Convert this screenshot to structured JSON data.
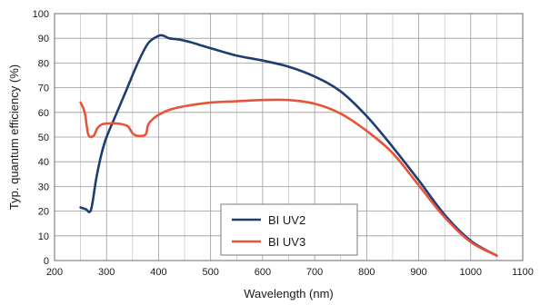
{
  "chart_data": {
    "type": "line",
    "xlabel": "Wavelength (nm)",
    "ylabel": "Typ. quantum efficiency (%)",
    "xlim": [
      200,
      1100
    ],
    "ylim": [
      0,
      100
    ],
    "x_ticks": [
      200,
      300,
      400,
      500,
      600,
      700,
      800,
      900,
      1000,
      1100
    ],
    "y_ticks": [
      0,
      10,
      20,
      30,
      40,
      50,
      60,
      70,
      80,
      90,
      100
    ],
    "x_tick_labels": [
      "200",
      "300",
      "400",
      "500",
      "600",
      "700",
      "800",
      "900",
      "1000",
      "1100"
    ],
    "y_tick_labels": [
      "0",
      "10",
      "20",
      "30",
      "40",
      "50",
      "60",
      "70",
      "80",
      "90",
      "100"
    ],
    "grid": true,
    "legend_position": "bottom-left",
    "series": [
      {
        "name": "BI UV2",
        "color": "#1f3d73",
        "x": [
          250,
          260,
          270,
          280,
          290,
          300,
          320,
          340,
          360,
          380,
          400,
          410,
          420,
          440,
          460,
          500,
          550,
          600,
          650,
          700,
          750,
          800,
          850,
          900,
          950,
          1000,
          1050
        ],
        "y": [
          21.5,
          20.8,
          20.5,
          33,
          43,
          50,
          60,
          70,
          80,
          88,
          91,
          91,
          90,
          89.5,
          88.5,
          86,
          83,
          81,
          78.5,
          74.5,
          68.5,
          58.5,
          46,
          32.5,
          18.5,
          8,
          2
        ]
      },
      {
        "name": "BI UV3",
        "color": "#e8543a",
        "x": [
          250,
          258,
          265,
          275,
          282,
          290,
          300,
          320,
          340,
          350,
          360,
          375,
          380,
          390,
          400,
          420,
          450,
          500,
          550,
          600,
          650,
          700,
          750,
          800,
          850,
          900,
          950,
          1000,
          1050
        ],
        "y": [
          64,
          60,
          51,
          50.5,
          53.5,
          55,
          55.5,
          55.5,
          54.5,
          51.5,
          50.5,
          51,
          55,
          57.5,
          59,
          61,
          62.5,
          64,
          64.5,
          65,
          65,
          63.5,
          59.5,
          52.5,
          43.5,
          30.5,
          17.5,
          7.5,
          2
        ]
      }
    ]
  }
}
